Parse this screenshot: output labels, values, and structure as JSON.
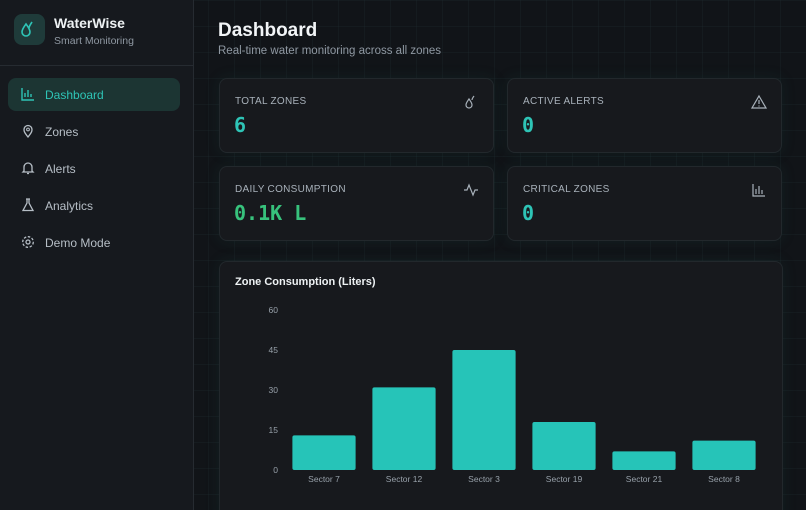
{
  "sidebar": {
    "brand": "WaterWise",
    "tagline": "Smart Monitoring",
    "nav": [
      "Dashboard",
      "Zones",
      "Alerts",
      "Analytics",
      "Demo Mode"
    ]
  },
  "header": {
    "title": "Dashboard",
    "subtitle": "Real-time water monitoring across all zones"
  },
  "stats": [
    {
      "label": "TOTAL ZONES",
      "value": 6
    },
    {
      "label": "ACTIVE ALERTS",
      "value": 0
    },
    {
      "label": "DAILY CONSUMPTION",
      "value": "0.1K L"
    },
    {
      "label": "CRITICAL ZONES",
      "value": 0
    }
  ],
  "chart_data": {
    "type": "bar",
    "title": "Zone Consumption (Liters)",
    "categories": [
      "Sector 7",
      "Sector 12",
      "Sector 3",
      "Sector 19",
      "Sector 21",
      "Sector 8"
    ],
    "values": [
      13,
      31,
      45,
      18,
      7,
      11
    ],
    "color": "#26c4b8",
    "ylim": [
      0,
      60
    ],
    "yticks": [
      0,
      15,
      30,
      45,
      60
    ],
    "grid": false
  }
}
